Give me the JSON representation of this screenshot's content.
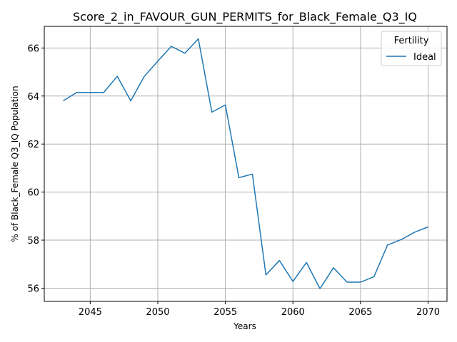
{
  "chart_data": {
    "type": "line",
    "title": "Score_2_in_FAVOUR_GUN_PERMITS_for_Black_Female_Q3_IQ",
    "xlabel": "Years",
    "ylabel": "% of Black_Female Q3_IQ Population",
    "xlim": [
      2041.6,
      2071.4
    ],
    "ylim": [
      55.45,
      66.9
    ],
    "x_ticks": [
      2045,
      2050,
      2055,
      2060,
      2065,
      2070
    ],
    "y_ticks": [
      56,
      58,
      60,
      62,
      64,
      66
    ],
    "grid": true,
    "legend": {
      "title": "Fertility",
      "placement": "top-right"
    },
    "series": [
      {
        "name": "Ideal",
        "color": "#1f77b4",
        "x": [
          2043,
          2044,
          2045,
          2046,
          2047,
          2048,
          2049,
          2050,
          2051,
          2052,
          2053,
          2054,
          2055,
          2056,
          2057,
          2058,
          2059,
          2060,
          2061,
          2062,
          2063,
          2064,
          2065,
          2066,
          2067,
          2068,
          2069,
          2070
        ],
        "values": [
          63.8,
          64.15,
          64.15,
          64.15,
          64.82,
          63.8,
          64.82,
          65.45,
          66.07,
          65.78,
          66.38,
          63.33,
          63.63,
          60.6,
          60.75,
          56.55,
          57.15,
          56.28,
          57.07,
          55.98,
          56.85,
          56.25,
          56.25,
          56.48,
          57.8,
          58.02,
          58.33,
          58.55
        ]
      }
    ]
  }
}
